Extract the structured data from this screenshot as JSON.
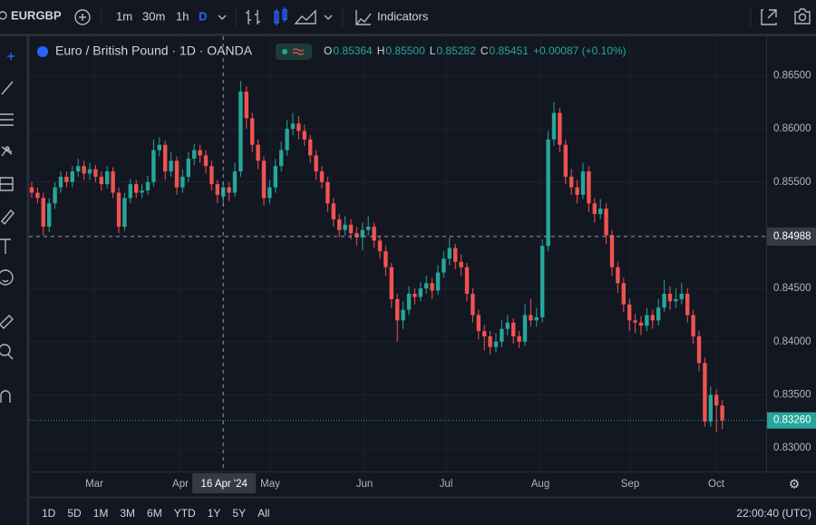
{
  "toolbar": {
    "symbol": "EURGBP",
    "intervals": [
      "1m",
      "30m",
      "1h",
      "D"
    ],
    "indicators": "Indicators"
  },
  "chart_data": {
    "type": "candlestick",
    "title": "Euro / British Pound · 1D · OANDA",
    "ohlc_legend": [
      {
        "label": "O",
        "value": "0.85364"
      },
      {
        "label": "H",
        "value": "0.85500"
      },
      {
        "label": "L",
        "value": "0.85282"
      },
      {
        "label": "C",
        "value": "0.85451"
      }
    ],
    "change": "+0.00087 (+0.10%)",
    "up_color": "#26a69a",
    "down_color": "#ef5350",
    "ylim": [
      0.8278,
      0.8687
    ],
    "yticks": [
      {
        "value": 0.865,
        "label": "0.86500"
      },
      {
        "value": 0.86,
        "label": "0.86000"
      },
      {
        "value": 0.855,
        "label": "0.85500"
      },
      {
        "value": 0.85,
        "label": "0.85000"
      },
      {
        "value": 0.845,
        "label": "0.84500"
      },
      {
        "value": 0.84,
        "label": "0.84000"
      },
      {
        "value": 0.835,
        "label": "0.83500"
      },
      {
        "value": 0.83,
        "label": "0.83000"
      }
    ],
    "month_labels": [
      "Mar",
      "Apr",
      "May",
      "Jun",
      "Jul",
      "Aug",
      "Sep",
      "Oct"
    ],
    "crosshair": {
      "price": {
        "value": 0.84988,
        "label": "0.84988"
      },
      "date": "16 Apr '24"
    },
    "last_price": {
      "value": 0.8326,
      "label": "0.83260"
    },
    "candles": [
      [
        0.8545,
        0.855,
        0.8535,
        0.854
      ],
      [
        0.854,
        0.8545,
        0.853,
        0.8535
      ],
      [
        0.8535,
        0.854,
        0.85,
        0.8508
      ],
      [
        0.8508,
        0.8535,
        0.8503,
        0.853
      ],
      [
        0.853,
        0.855,
        0.8525,
        0.8545
      ],
      [
        0.8545,
        0.856,
        0.854,
        0.8555
      ],
      [
        0.8555,
        0.856,
        0.8545,
        0.855
      ],
      [
        0.855,
        0.8565,
        0.8545,
        0.856
      ],
      [
        0.856,
        0.8572,
        0.8555,
        0.8565
      ],
      [
        0.8565,
        0.857,
        0.8552,
        0.8558
      ],
      [
        0.8558,
        0.8568,
        0.8552,
        0.8562
      ],
      [
        0.8562,
        0.8566,
        0.855,
        0.8555
      ],
      [
        0.8555,
        0.856,
        0.8542,
        0.8548
      ],
      [
        0.8548,
        0.8565,
        0.8544,
        0.856
      ],
      [
        0.856,
        0.8564,
        0.8535,
        0.854
      ],
      [
        0.854,
        0.8545,
        0.8502,
        0.8508
      ],
      [
        0.8508,
        0.854,
        0.8504,
        0.8535
      ],
      [
        0.8535,
        0.8553,
        0.853,
        0.8548
      ],
      [
        0.8548,
        0.8552,
        0.8535,
        0.854
      ],
      [
        0.854,
        0.8548,
        0.8535,
        0.8542
      ],
      [
        0.8542,
        0.8556,
        0.8538,
        0.855
      ],
      [
        0.855,
        0.859,
        0.8546,
        0.858
      ],
      [
        0.858,
        0.8592,
        0.8574,
        0.8585
      ],
      [
        0.8585,
        0.8589,
        0.8552,
        0.856
      ],
      [
        0.856,
        0.8578,
        0.8555,
        0.857
      ],
      [
        0.857,
        0.8574,
        0.8538,
        0.8545
      ],
      [
        0.8545,
        0.8562,
        0.854,
        0.8555
      ],
      [
        0.8555,
        0.8578,
        0.855,
        0.8572
      ],
      [
        0.8572,
        0.8586,
        0.8566,
        0.858
      ],
      [
        0.858,
        0.8585,
        0.8568,
        0.8575
      ],
      [
        0.8575,
        0.858,
        0.8558,
        0.8565
      ],
      [
        0.8565,
        0.857,
        0.8542,
        0.8548
      ],
      [
        0.8548,
        0.8552,
        0.853,
        0.8538
      ],
      [
        0.85364,
        0.855,
        0.85282,
        0.85451
      ],
      [
        0.8545,
        0.855,
        0.8532,
        0.854
      ],
      [
        0.854,
        0.8568,
        0.8536,
        0.856
      ],
      [
        0.856,
        0.8645,
        0.8555,
        0.8635
      ],
      [
        0.8635,
        0.864,
        0.86,
        0.861
      ],
      [
        0.861,
        0.8615,
        0.8578,
        0.8585
      ],
      [
        0.8585,
        0.859,
        0.8562,
        0.857
      ],
      [
        0.857,
        0.8574,
        0.8528,
        0.8535
      ],
      [
        0.8535,
        0.8552,
        0.853,
        0.8545
      ],
      [
        0.8545,
        0.8572,
        0.854,
        0.8565
      ],
      [
        0.8565,
        0.8588,
        0.856,
        0.858
      ],
      [
        0.858,
        0.8608,
        0.8575,
        0.86
      ],
      [
        0.86,
        0.8615,
        0.8594,
        0.8605
      ],
      [
        0.8605,
        0.8612,
        0.859,
        0.8598
      ],
      [
        0.8598,
        0.8604,
        0.8584,
        0.859
      ],
      [
        0.859,
        0.8594,
        0.8568,
        0.8575
      ],
      [
        0.8575,
        0.858,
        0.8552,
        0.856
      ],
      [
        0.856,
        0.8565,
        0.8544,
        0.855
      ],
      [
        0.855,
        0.8555,
        0.8522,
        0.853
      ],
      [
        0.853,
        0.8535,
        0.8508,
        0.8515
      ],
      [
        0.8515,
        0.852,
        0.8498,
        0.8505
      ],
      [
        0.8505,
        0.8518,
        0.85,
        0.851
      ],
      [
        0.851,
        0.8515,
        0.8496,
        0.8502
      ],
      [
        0.8502,
        0.8508,
        0.849,
        0.8498
      ],
      [
        0.8498,
        0.8512,
        0.8486,
        0.8505
      ],
      [
        0.8505,
        0.8518,
        0.85,
        0.8508
      ],
      [
        0.8508,
        0.8512,
        0.8488,
        0.8495
      ],
      [
        0.8495,
        0.85,
        0.8478,
        0.8485
      ],
      [
        0.8485,
        0.849,
        0.8462,
        0.847
      ],
      [
        0.847,
        0.8474,
        0.8432,
        0.844
      ],
      [
        0.844,
        0.8445,
        0.84,
        0.842
      ],
      [
        0.842,
        0.8438,
        0.8412,
        0.843
      ],
      [
        0.843,
        0.8452,
        0.8425,
        0.8445
      ],
      [
        0.8445,
        0.845,
        0.8435,
        0.8442
      ],
      [
        0.8442,
        0.8456,
        0.8438,
        0.845
      ],
      [
        0.845,
        0.8462,
        0.8445,
        0.8455
      ],
      [
        0.8455,
        0.846,
        0.844,
        0.8448
      ],
      [
        0.8448,
        0.8472,
        0.8444,
        0.8465
      ],
      [
        0.8465,
        0.8485,
        0.846,
        0.8478
      ],
      [
        0.8478,
        0.8498,
        0.8472,
        0.8488
      ],
      [
        0.8488,
        0.8492,
        0.8468,
        0.8475
      ],
      [
        0.8475,
        0.8482,
        0.8462,
        0.847
      ],
      [
        0.847,
        0.8474,
        0.8438,
        0.8445
      ],
      [
        0.8445,
        0.845,
        0.8418,
        0.8425
      ],
      [
        0.8425,
        0.843,
        0.8402,
        0.841
      ],
      [
        0.841,
        0.8416,
        0.8392,
        0.8405
      ],
      [
        0.8405,
        0.841,
        0.8388,
        0.8395
      ],
      [
        0.8395,
        0.8408,
        0.839,
        0.84
      ],
      [
        0.84,
        0.842,
        0.8395,
        0.8412
      ],
      [
        0.8412,
        0.8425,
        0.8406,
        0.8418
      ],
      [
        0.8418,
        0.8422,
        0.8398,
        0.8405
      ],
      [
        0.8405,
        0.841,
        0.8394,
        0.84
      ],
      [
        0.84,
        0.8435,
        0.8396,
        0.8425
      ],
      [
        0.8425,
        0.844,
        0.8414,
        0.842
      ],
      [
        0.842,
        0.8432,
        0.8414,
        0.8423
      ],
      [
        0.8423,
        0.8496,
        0.8418,
        0.849
      ],
      [
        0.849,
        0.8598,
        0.8485,
        0.859
      ],
      [
        0.859,
        0.8625,
        0.8584,
        0.8615
      ],
      [
        0.8615,
        0.862,
        0.8578,
        0.8585
      ],
      [
        0.8585,
        0.859,
        0.8548,
        0.8555
      ],
      [
        0.8555,
        0.8562,
        0.8538,
        0.8545
      ],
      [
        0.8545,
        0.8552,
        0.853,
        0.8538
      ],
      [
        0.8538,
        0.8568,
        0.8534,
        0.856
      ],
      [
        0.856,
        0.8565,
        0.8522,
        0.853
      ],
      [
        0.853,
        0.8535,
        0.8512,
        0.852
      ],
      [
        0.852,
        0.8534,
        0.8515,
        0.8525
      ],
      [
        0.8525,
        0.853,
        0.8492,
        0.85
      ],
      [
        0.85,
        0.8505,
        0.8462,
        0.847
      ],
      [
        0.847,
        0.8475,
        0.8446,
        0.8455
      ],
      [
        0.8455,
        0.846,
        0.8428,
        0.8435
      ],
      [
        0.8435,
        0.844,
        0.841,
        0.842
      ],
      [
        0.842,
        0.8426,
        0.8408,
        0.8418
      ],
      [
        0.8418,
        0.8424,
        0.8406,
        0.8415
      ],
      [
        0.8415,
        0.8432,
        0.841,
        0.8425
      ],
      [
        0.8425,
        0.843,
        0.8412,
        0.842
      ],
      [
        0.842,
        0.844,
        0.8415,
        0.8432
      ],
      [
        0.8432,
        0.8458,
        0.8428,
        0.8445
      ],
      [
        0.8445,
        0.8452,
        0.843,
        0.8438
      ],
      [
        0.8438,
        0.845,
        0.8432,
        0.844
      ],
      [
        0.844,
        0.8455,
        0.8435,
        0.8445
      ],
      [
        0.8445,
        0.845,
        0.8418,
        0.8425
      ],
      [
        0.8425,
        0.843,
        0.8398,
        0.8405
      ],
      [
        0.8405,
        0.841,
        0.8372,
        0.838
      ],
      [
        0.838,
        0.8385,
        0.832,
        0.8325
      ],
      [
        0.8325,
        0.8358,
        0.832,
        0.835
      ],
      [
        0.835,
        0.8355,
        0.8315,
        0.834
      ],
      [
        0.834,
        0.8345,
        0.8318,
        0.8326
      ]
    ]
  },
  "bottom_bar": {
    "ranges": [
      "1D",
      "5D",
      "1M",
      "3M",
      "6M",
      "YTD",
      "1Y",
      "5Y",
      "All"
    ],
    "clock": "22:00:40 (UTC)"
  }
}
